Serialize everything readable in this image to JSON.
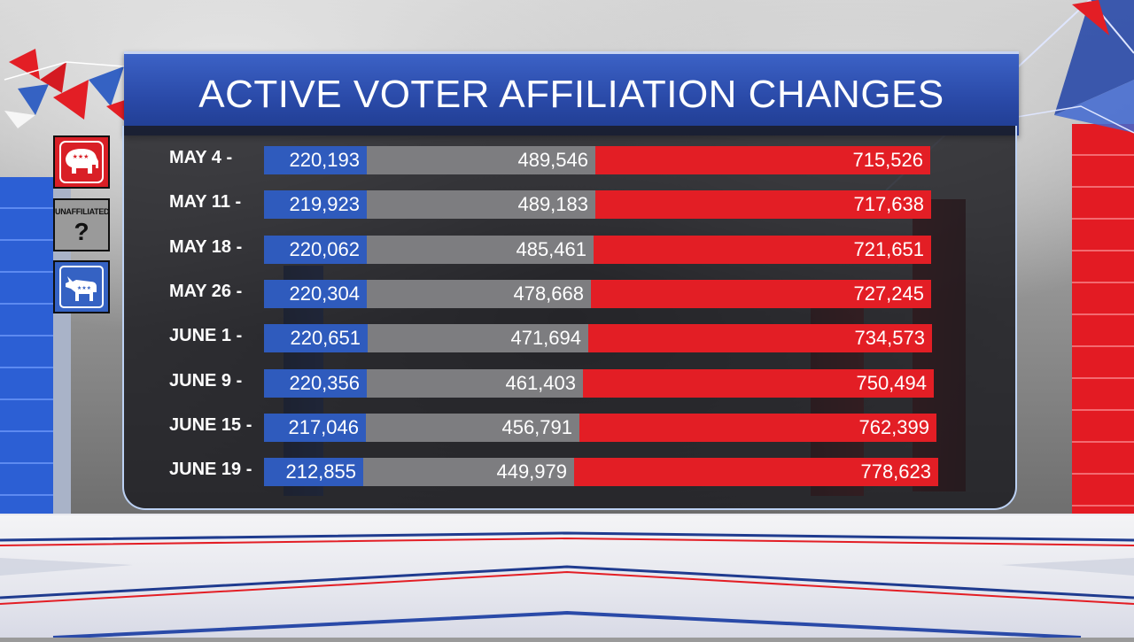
{
  "title": "ACTIVE VOTER AFFILIATION CHANGES",
  "legend": {
    "republican_icon": "elephant-icon",
    "unaffiliated_label": "UNAFFILIATED",
    "unaffiliated_symbol": "?",
    "democrat_icon": "donkey-icon"
  },
  "colors": {
    "democrat": "#2f5bbd",
    "unaffiliated": "#7d7d80",
    "republican": "#e31e25",
    "banner": "#2a4aa8"
  },
  "chart_data": {
    "type": "bar",
    "orientation": "horizontal-stacked",
    "title": "ACTIVE VOTER AFFILIATION CHANGES",
    "categories": [
      "MAY 4 -",
      "MAY 11 -",
      "MAY 18 -",
      "MAY 26 -",
      "JUNE 1 -",
      "JUNE 9 -",
      "JUNE 15 -",
      "JUNE 19 -"
    ],
    "series": [
      {
        "color": "#2f5bbd",
        "values": [
          220193,
          219923,
          220062,
          220304,
          220651,
          220356,
          217046,
          212855
        ],
        "labels": [
          "220,193",
          "219,923",
          "220,062",
          "220,304",
          "220,651",
          "220,356",
          "217,046",
          "212,855"
        ]
      },
      {
        "color": "#7d7d80",
        "values": [
          489546,
          489183,
          485461,
          478668,
          471694,
          461403,
          456791,
          449979
        ],
        "labels": [
          "489,546",
          "489,183",
          "485,461",
          "478,668",
          "471,694",
          "461,403",
          "456,791",
          "449,979"
        ]
      },
      {
        "color": "#e31e25",
        "values": [
          715526,
          717638,
          721651,
          727245,
          734573,
          750494,
          762399,
          778623
        ],
        "labels": [
          "715,526",
          "717,638",
          "721,651",
          "727,245",
          "734,573",
          "750,494",
          "762,399",
          "778,623"
        ]
      }
    ]
  }
}
